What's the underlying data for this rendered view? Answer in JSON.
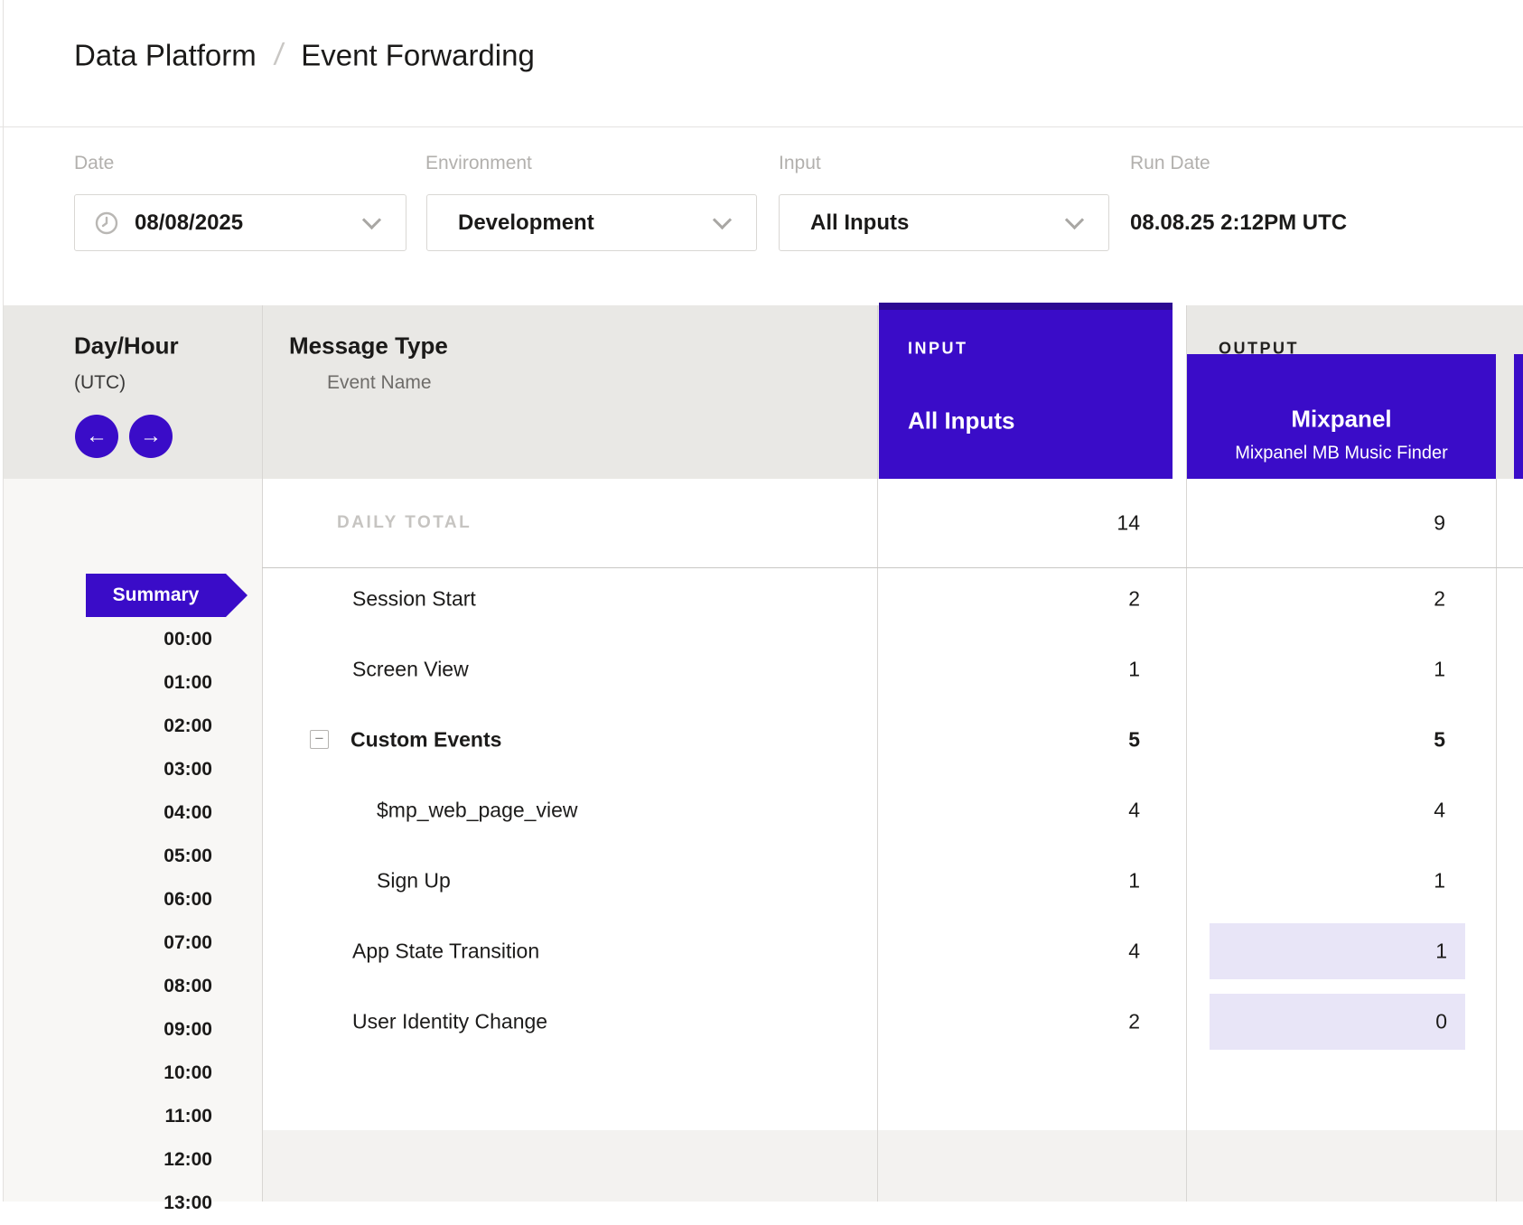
{
  "breadcrumb": {
    "section": "Data Platform",
    "separator": "/",
    "page": "Event Forwarding"
  },
  "filters": {
    "date": {
      "label": "Date",
      "value": "08/08/2025"
    },
    "environment": {
      "label": "Environment",
      "value": "Development"
    },
    "input": {
      "label": "Input",
      "value": "All Inputs"
    },
    "run_date": {
      "label": "Run Date",
      "value": "08.08.25 2:12PM UTC"
    }
  },
  "table": {
    "day_hour": {
      "title": "Day/Hour",
      "subtitle": "(UTC)"
    },
    "message_type": {
      "title": "Message Type",
      "subtitle": "Event Name"
    },
    "input_column": {
      "header": "INPUT",
      "selected": "All Inputs"
    },
    "output_column": {
      "header": "OUTPUT",
      "name": "Mixpanel",
      "connection": "Mixpanel MB Music Finder"
    },
    "daily_total": {
      "label": "DAILY TOTAL",
      "input": "14",
      "output": "9"
    },
    "rows": [
      {
        "name": "Session Start",
        "input": "2",
        "output": "2",
        "level": 0,
        "bold": false,
        "collapsible": false,
        "highlight_output": false
      },
      {
        "name": "Screen View",
        "input": "1",
        "output": "1",
        "level": 0,
        "bold": false,
        "collapsible": false,
        "highlight_output": false
      },
      {
        "name": "Custom Events",
        "input": "5",
        "output": "5",
        "level": 0,
        "bold": true,
        "collapsible": true,
        "highlight_output": false
      },
      {
        "name": "$mp_web_page_view",
        "input": "4",
        "output": "4",
        "level": 1,
        "bold": false,
        "collapsible": false,
        "highlight_output": false
      },
      {
        "name": "Sign Up",
        "input": "1",
        "output": "1",
        "level": 1,
        "bold": false,
        "collapsible": false,
        "highlight_output": false
      },
      {
        "name": "App State Transition",
        "input": "4",
        "output": "1",
        "level": 0,
        "bold": false,
        "collapsible": false,
        "highlight_output": true
      },
      {
        "name": "User Identity Change",
        "input": "2",
        "output": "0",
        "level": 0,
        "bold": false,
        "collapsible": false,
        "highlight_output": true
      }
    ],
    "collapse_glyph": "−",
    "hours": {
      "summary_label": "Summary",
      "slots": [
        "00:00",
        "01:00",
        "02:00",
        "03:00",
        "04:00",
        "05:00",
        "06:00",
        "07:00",
        "08:00",
        "09:00",
        "10:00",
        "11:00",
        "12:00",
        "13:00"
      ]
    },
    "nav": {
      "prev_glyph": "←",
      "next_glyph": "→"
    }
  },
  "colors": {
    "purple": "#3a0cc8",
    "purple_dark": "#2c0a92",
    "highlight": "#e8e5f7"
  }
}
